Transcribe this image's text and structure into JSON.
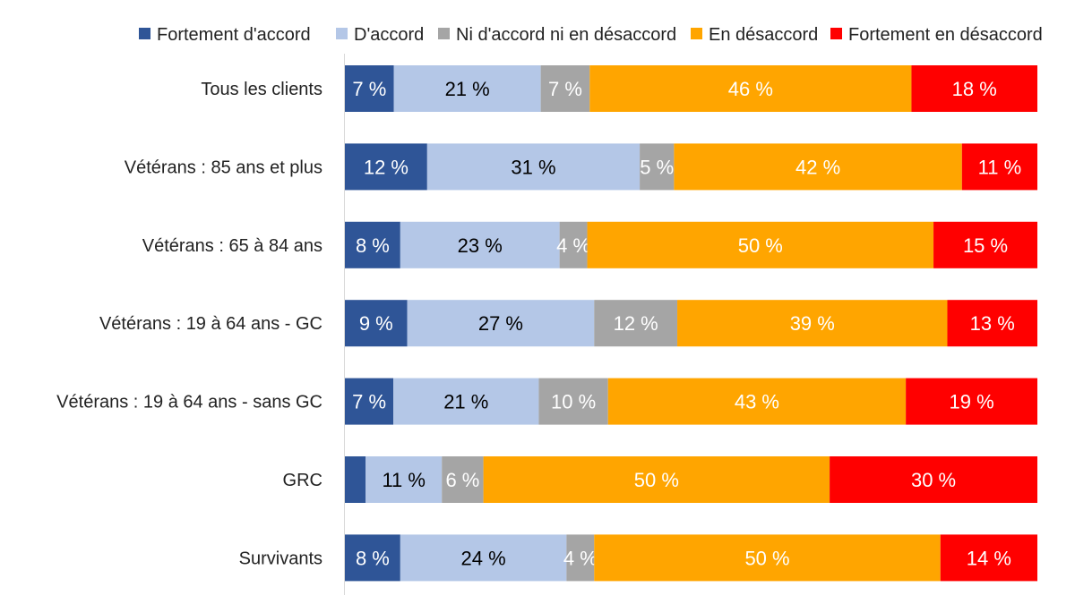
{
  "chart_data": {
    "type": "bar",
    "orientation": "horizontal",
    "stacked": "100%",
    "categories": [
      "Tous les clients",
      "Vétérans : 85 ans et plus",
      "Vétérans : 65 à 84 ans",
      "Vétérans : 19 à 64 ans - GC",
      "Vétérans : 19 à 64 ans - sans GC",
      "GRC",
      "Survivants"
    ],
    "series": [
      {
        "name": "Fortement d'accord",
        "color": "#2F5597",
        "label_color": "#FFFFFF",
        "values": [
          7,
          12,
          8,
          9,
          7,
          3,
          8
        ],
        "labels": [
          "7 %",
          "12 %",
          "8 %",
          "9 %",
          "7 %",
          "",
          "8 %"
        ]
      },
      {
        "name": "D'accord",
        "color": "#B4C7E7",
        "label_color": "#000000",
        "values": [
          21,
          31,
          23,
          27,
          21,
          11,
          24
        ],
        "labels": [
          "21 %",
          "31 %",
          "23 %",
          "27 %",
          "21 %",
          "11 %",
          "24 %"
        ]
      },
      {
        "name": "Ni d'accord ni en désaccord",
        "color": "#A5A5A5",
        "label_color": "#FFFFFF",
        "values": [
          7,
          5,
          4,
          12,
          10,
          6,
          4
        ],
        "labels": [
          "7 %",
          "5 %",
          "4 %",
          "12 %",
          "10 %",
          "6 %",
          "4 %"
        ]
      },
      {
        "name": "En désaccord",
        "color": "#FFA500",
        "label_color": "#FFFFFF",
        "values": [
          46,
          42,
          50,
          39,
          43,
          50,
          50
        ],
        "labels": [
          "46 %",
          "42 %",
          "50 %",
          "39 %",
          "43 %",
          "50 %",
          "50 %"
        ]
      },
      {
        "name": "Fortement en désaccord",
        "color": "#FF0000",
        "label_color": "#FFFFFF",
        "values": [
          18,
          11,
          15,
          13,
          19,
          30,
          14
        ],
        "labels": [
          "18 %",
          "11 %",
          "15 %",
          "13 %",
          "19 %",
          "30 %",
          "14 %"
        ]
      }
    ],
    "legend_position": "top",
    "grid": false
  }
}
